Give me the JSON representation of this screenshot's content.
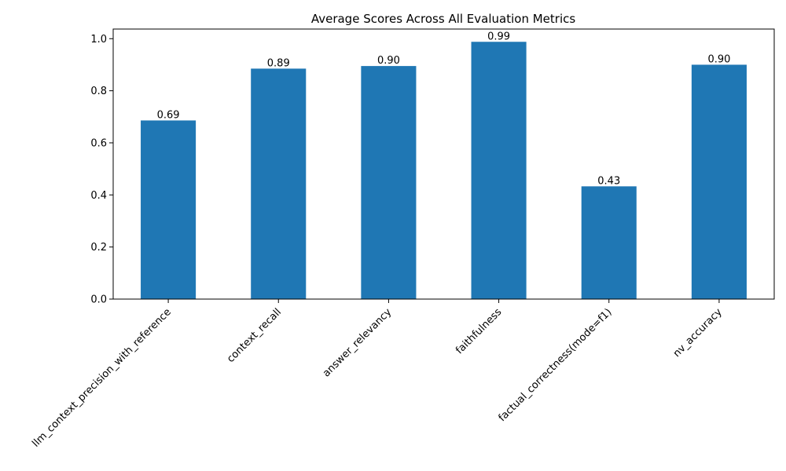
{
  "chart_data": {
    "type": "bar",
    "title": "Average Scores Across All Evaluation Metrics",
    "xlabel": "",
    "ylabel": "",
    "categories": [
      "llm_context_precision_with_reference",
      "context_recall",
      "answer_relevancy",
      "faithfulness",
      "factual_correctness(mode=f1)",
      "nv_accuracy"
    ],
    "values": [
      0.686,
      0.885,
      0.895,
      0.988,
      0.433,
      0.9
    ],
    "data_labels": [
      "0.69",
      "0.89",
      "0.90",
      "0.99",
      "0.43",
      "0.90"
    ],
    "ylim": [
      0,
      1.037
    ],
    "yticks": [
      0.0,
      0.2,
      0.4,
      0.6,
      0.8,
      1.0
    ],
    "ytick_labels": [
      "0.0",
      "0.2",
      "0.4",
      "0.6",
      "0.8",
      "1.0"
    ],
    "bar_color": "#1f77b4",
    "grid": false,
    "legend": "none"
  }
}
